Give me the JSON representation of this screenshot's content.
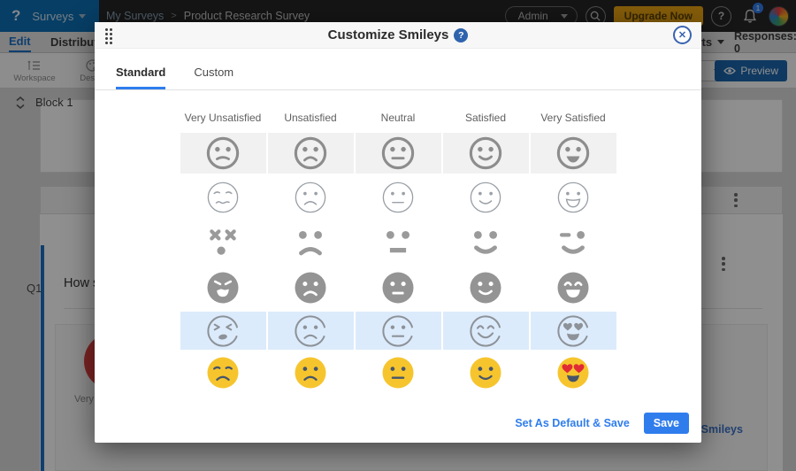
{
  "app": {
    "logo_glyph": "?",
    "product": "Surveys",
    "breadcrumb": [
      "My Surveys",
      "Product Research Survey"
    ],
    "breadcrumb_sep": ">",
    "admin_label": "Admin",
    "upgrade_label": "Upgrade Now",
    "bell_badge": "1",
    "help_glyph": "?"
  },
  "nav": {
    "edit": "Edit",
    "distribute": "Distribute",
    "more": "Reports",
    "responses": "Responses: 0"
  },
  "toolbar": {
    "workspace": "Workspace",
    "design": "Design",
    "preview": "Preview"
  },
  "canvas": {
    "survey_title": "Product Research Survey",
    "block_label": "Block 1",
    "question_number": "Q1",
    "question_text": "How satisfied are you with our product?",
    "answer_label": "Very Unsatisfied",
    "customize_link": "Customize Smileys"
  },
  "modal": {
    "title": "Customize Smileys",
    "help_glyph": "?",
    "close_glyph": "✕",
    "tabs": [
      {
        "label": "Standard",
        "active": true
      },
      {
        "label": "Custom",
        "active": false
      }
    ],
    "columns": [
      "Very Unsatisfied",
      "Unsatisfied",
      "Neutral",
      "Satisfied",
      "Very Satisfied"
    ],
    "rows": [
      {
        "style": "bold",
        "height": 46,
        "cell_bg": "#f1f1f1",
        "selected": false,
        "faces": [
          {
            "eyes": "dots",
            "mouth": "slight-frown"
          },
          {
            "eyes": "dots",
            "mouth": "frown"
          },
          {
            "eyes": "dots",
            "mouth": "line"
          },
          {
            "eyes": "dots",
            "mouth": "smile"
          },
          {
            "eyes": "dots",
            "mouth": "grin-filled"
          }
        ]
      },
      {
        "style": "thin",
        "height": 50,
        "cell_bg": "",
        "selected": false,
        "faces": [
          {
            "eyes": "droop",
            "mouth": "wavy"
          },
          {
            "eyes": "dots",
            "mouth": "frown"
          },
          {
            "eyes": "dots",
            "mouth": "line"
          },
          {
            "eyes": "dots",
            "mouth": "smile"
          },
          {
            "eyes": "dots",
            "mouth": "open-grin"
          }
        ]
      },
      {
        "style": "feat",
        "height": 48,
        "cell_bg": "",
        "selected": false,
        "faces": [
          {
            "eyes": "xx",
            "mouth": "dot"
          },
          {
            "eyes": "dots",
            "mouth": "frown"
          },
          {
            "eyes": "dots",
            "mouth": "bar"
          },
          {
            "eyes": "dots",
            "mouth": "smile"
          },
          {
            "eyes": "wink",
            "mouth": "smile"
          }
        ]
      },
      {
        "style": "filled",
        "height": 50,
        "cell_bg": "",
        "selected": false,
        "faces": [
          {
            "eyes": "angry",
            "mouth": "open-shout"
          },
          {
            "eyes": "dots",
            "mouth": "frown"
          },
          {
            "eyes": "dots",
            "mouth": "bar"
          },
          {
            "eyes": "dots",
            "mouth": "smile"
          },
          {
            "eyes": "happy-arcs",
            "mouth": "open-grin"
          }
        ]
      },
      {
        "style": "sketch",
        "height": 43,
        "cell_bg": "#dcebfb",
        "selected": true,
        "faces": [
          {
            "eyes": "squeeze",
            "mouth": "oval"
          },
          {
            "eyes": "dots",
            "mouth": "frown"
          },
          {
            "eyes": "dots",
            "mouth": "line"
          },
          {
            "eyes": "happy-arcs",
            "mouth": "big-smile"
          },
          {
            "eyes": "hearts",
            "mouth": "open-grin"
          }
        ]
      },
      {
        "style": "emoji",
        "height": 48,
        "cell_bg": "",
        "selected": false,
        "faces": [
          {
            "eyes": "droop",
            "mouth": "frown"
          },
          {
            "eyes": "dots",
            "mouth": "frown"
          },
          {
            "eyes": "dots",
            "mouth": "line"
          },
          {
            "eyes": "dots",
            "mouth": "smile"
          },
          {
            "eyes": "hearts",
            "mouth": "open-grin"
          }
        ]
      }
    ],
    "footer": {
      "default_save_label": "Set As Default & Save",
      "save_label": "Save"
    },
    "colors": {
      "accent": "#2f7ded",
      "selected_row_bg": "#dcebfb",
      "smiley_gray": "#8d8d8d",
      "emoji_yellow": "#f6c52e",
      "emoji_feature": "#475569",
      "heart_red": "#e02b35"
    }
  }
}
